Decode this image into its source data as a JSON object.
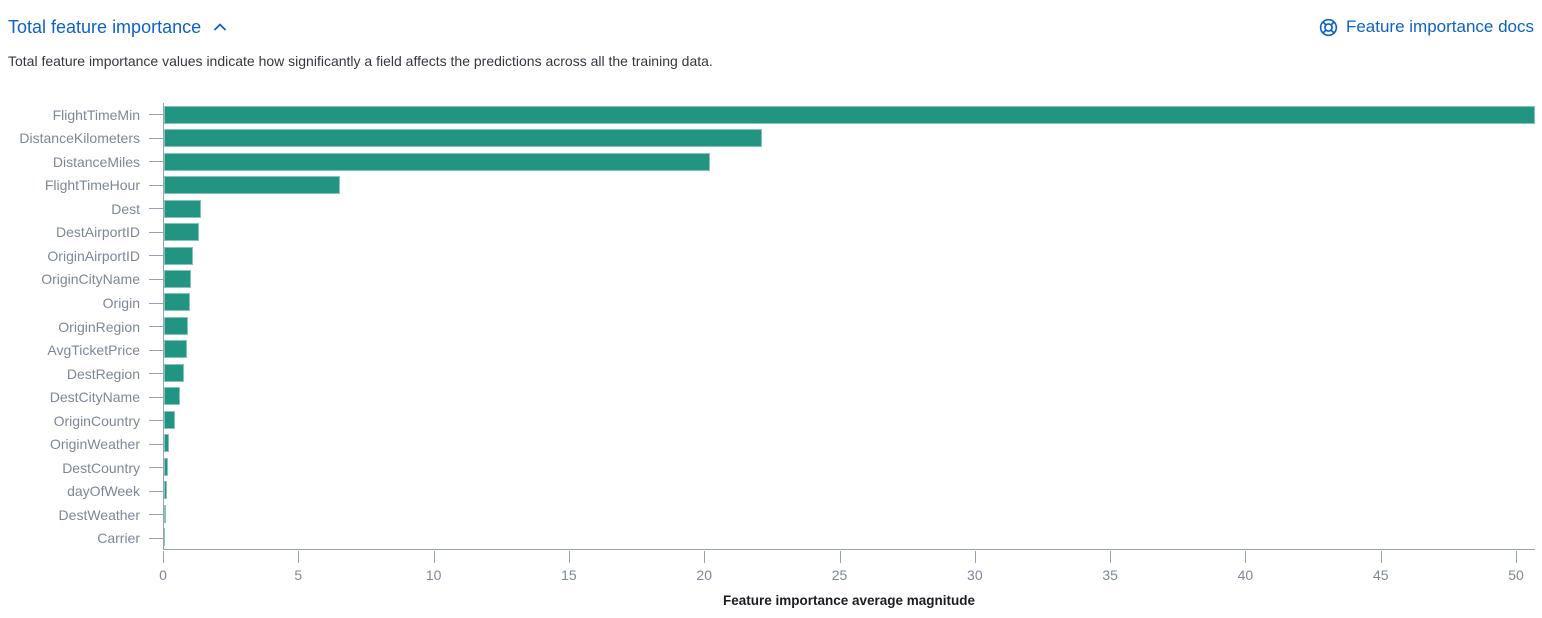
{
  "header": {
    "title": "Total feature importance",
    "collapse_icon": "chevron-up-icon",
    "docs_link_label": "Feature importance docs",
    "docs_link_icon": "help-lifebuoy-icon",
    "link_color": "#0d62c6"
  },
  "description": "Total feature importance values indicate how significantly a field affects the predictions across all the training data.",
  "chart_data": {
    "type": "bar",
    "orientation": "horizontal",
    "title": "",
    "xlabel": "Feature importance average magnitude",
    "ylabel": "",
    "categories": [
      "FlightTimeMin",
      "DistanceKilometers",
      "DistanceMiles",
      "FlightTimeHour",
      "Dest",
      "DestAirportID",
      "OriginAirportID",
      "OriginCityName",
      "Origin",
      "OriginRegion",
      "AvgTicketPrice",
      "DestRegion",
      "DestCityName",
      "OriginCountry",
      "OriginWeather",
      "DestCountry",
      "dayOfWeek",
      "DestWeather",
      "Carrier"
    ],
    "values": [
      50.7,
      22.1,
      20.2,
      6.5,
      1.35,
      1.3,
      1.08,
      0.99,
      0.97,
      0.9,
      0.84,
      0.75,
      0.59,
      0.41,
      0.19,
      0.16,
      0.12,
      0.08,
      0.03
    ],
    "x_ticks": [
      0,
      5,
      10,
      15,
      20,
      25,
      30,
      35,
      40,
      45,
      50
    ],
    "xlim": [
      0,
      50.7
    ],
    "grid": false,
    "legend": false,
    "bar_color": "#219482",
    "axis_color": "#98a2b3",
    "label_color": "#7d8799"
  }
}
